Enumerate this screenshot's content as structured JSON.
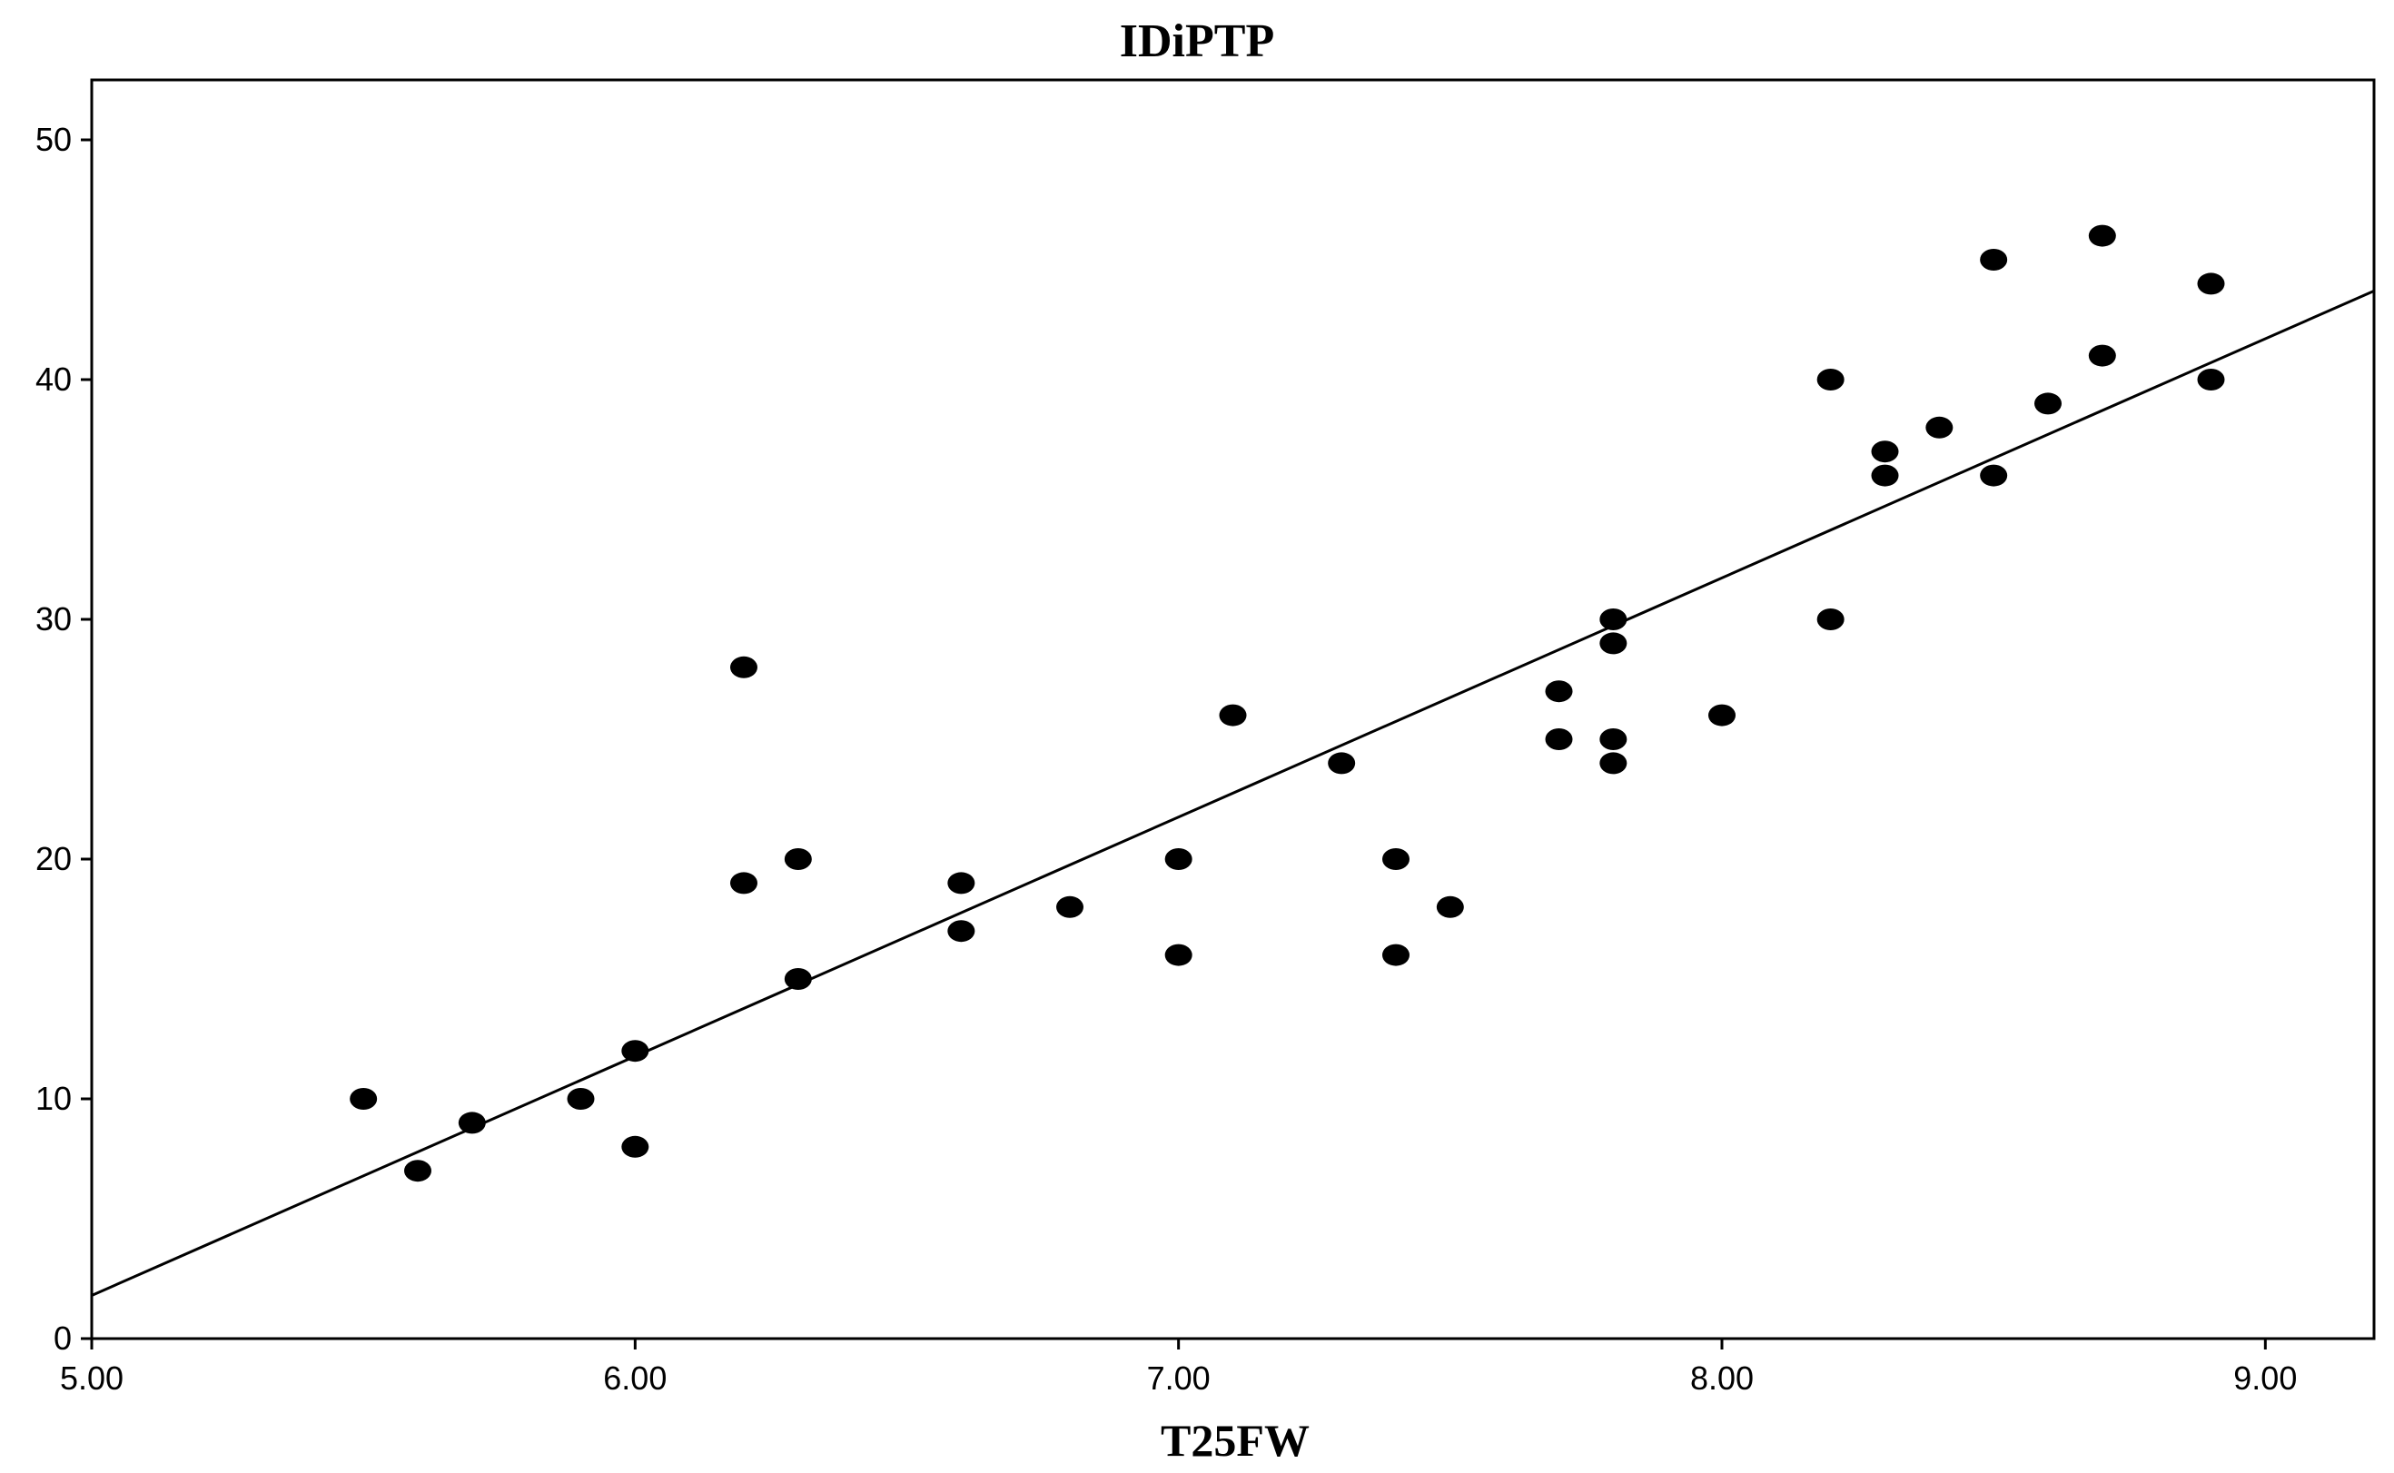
{
  "chart_data": {
    "type": "scatter",
    "title": "IDiPTP",
    "xlabel": "T25FW",
    "ylabel": "",
    "xlim": [
      5.0,
      9.2
    ],
    "ylim": [
      0,
      52.5
    ],
    "x_ticks": [
      5.0,
      6.0,
      7.0,
      8.0,
      9.0
    ],
    "x_tick_labels": [
      "5.00",
      "6.00",
      "7.00",
      "8.00",
      "9.00"
    ],
    "y_ticks": [
      0,
      10,
      20,
      30,
      40,
      50
    ],
    "y_tick_labels": [
      "0",
      "10",
      "20",
      "30",
      "40",
      "50"
    ],
    "grid": false,
    "legend": "none",
    "marker_color": "#000000",
    "points": [
      {
        "x": 5.5,
        "y": 10
      },
      {
        "x": 5.6,
        "y": 7
      },
      {
        "x": 5.7,
        "y": 9
      },
      {
        "x": 5.9,
        "y": 10
      },
      {
        "x": 6.0,
        "y": 12
      },
      {
        "x": 6.0,
        "y": 8
      },
      {
        "x": 6.2,
        "y": 28
      },
      {
        "x": 6.2,
        "y": 19
      },
      {
        "x": 6.3,
        "y": 20
      },
      {
        "x": 6.3,
        "y": 15
      },
      {
        "x": 6.6,
        "y": 19
      },
      {
        "x": 6.6,
        "y": 17
      },
      {
        "x": 6.8,
        "y": 18
      },
      {
        "x": 7.0,
        "y": 20
      },
      {
        "x": 7.0,
        "y": 16
      },
      {
        "x": 7.1,
        "y": 26
      },
      {
        "x": 7.3,
        "y": 24
      },
      {
        "x": 7.4,
        "y": 20
      },
      {
        "x": 7.4,
        "y": 16
      },
      {
        "x": 7.5,
        "y": 18
      },
      {
        "x": 7.7,
        "y": 27
      },
      {
        "x": 7.7,
        "y": 25
      },
      {
        "x": 7.8,
        "y": 30
      },
      {
        "x": 7.8,
        "y": 29
      },
      {
        "x": 7.8,
        "y": 25
      },
      {
        "x": 7.8,
        "y": 24
      },
      {
        "x": 8.0,
        "y": 26
      },
      {
        "x": 8.2,
        "y": 40
      },
      {
        "x": 8.2,
        "y": 30
      },
      {
        "x": 8.3,
        "y": 37
      },
      {
        "x": 8.3,
        "y": 36
      },
      {
        "x": 8.4,
        "y": 38
      },
      {
        "x": 8.5,
        "y": 45
      },
      {
        "x": 8.5,
        "y": 36
      },
      {
        "x": 8.6,
        "y": 39
      },
      {
        "x": 8.7,
        "y": 46
      },
      {
        "x": 8.7,
        "y": 41
      },
      {
        "x": 8.9,
        "y": 44
      },
      {
        "x": 8.9,
        "y": 40
      }
    ],
    "fit_line": {
      "x": [
        5.0,
        9.2
      ],
      "y": [
        1.8,
        43.7
      ]
    }
  }
}
